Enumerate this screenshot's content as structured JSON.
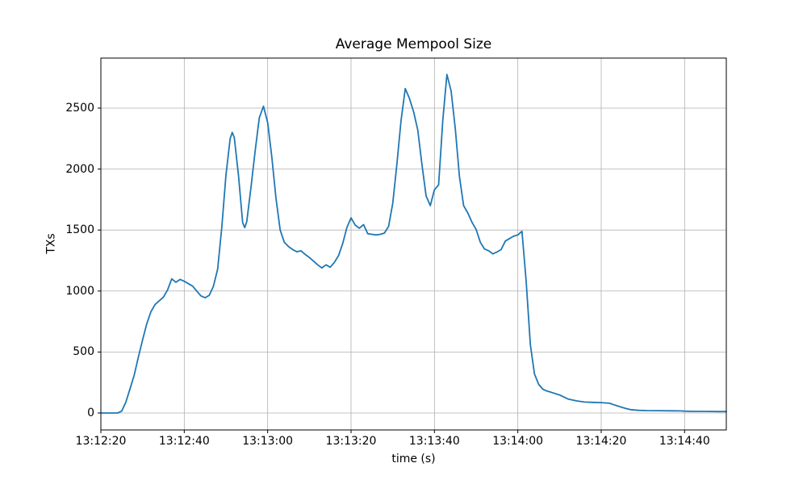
{
  "figure": {
    "background": "#ffffff"
  },
  "chart_data": {
    "type": "line",
    "title": "Average Mempool Size",
    "xlabel": "time (s)",
    "ylabel": "TXs",
    "grid": true,
    "legend_position": "none",
    "line_color": "#1f77b4",
    "grid_color": "#b0b0b0",
    "spine_color": "#000000",
    "x_tick_labels": [
      "13:12:20",
      "13:12:40",
      "13:13:00",
      "13:13:20",
      "13:13:40",
      "13:14:00",
      "13:14:20",
      "13:14:40"
    ],
    "x_tick_seconds": [
      0,
      20,
      40,
      60,
      80,
      100,
      120,
      140
    ],
    "y_ticks": [
      0,
      500,
      1000,
      1500,
      2000,
      2500
    ],
    "xlim_seconds": [
      0,
      150
    ],
    "ylim": [
      -139,
      2910
    ],
    "x_start_time": "13:12:20",
    "x_end_time": "13:14:50",
    "series": [
      {
        "points": [
          [
            0,
            0
          ],
          [
            2,
            0
          ],
          [
            4,
            0
          ],
          [
            5,
            15
          ],
          [
            6,
            90
          ],
          [
            7,
            200
          ],
          [
            8,
            310
          ],
          [
            9,
            460
          ],
          [
            10,
            600
          ],
          [
            11,
            730
          ],
          [
            12,
            830
          ],
          [
            13,
            890
          ],
          [
            14,
            920
          ],
          [
            15,
            950
          ],
          [
            16,
            1010
          ],
          [
            17,
            1100
          ],
          [
            18,
            1072
          ],
          [
            19,
            1095
          ],
          [
            20,
            1080
          ],
          [
            21,
            1060
          ],
          [
            22,
            1040
          ],
          [
            23,
            1000
          ],
          [
            24,
            960
          ],
          [
            25,
            945
          ],
          [
            26,
            965
          ],
          [
            27,
            1040
          ],
          [
            28,
            1180
          ],
          [
            29,
            1520
          ],
          [
            30,
            1950
          ],
          [
            31,
            2250
          ],
          [
            31.5,
            2300
          ],
          [
            32,
            2260
          ],
          [
            33,
            1950
          ],
          [
            34,
            1560
          ],
          [
            34.5,
            1520
          ],
          [
            35,
            1570
          ],
          [
            36,
            1850
          ],
          [
            37,
            2150
          ],
          [
            38,
            2420
          ],
          [
            39,
            2515
          ],
          [
            40,
            2380
          ],
          [
            41,
            2100
          ],
          [
            42,
            1760
          ],
          [
            43,
            1500
          ],
          [
            44,
            1400
          ],
          [
            45,
            1365
          ],
          [
            46,
            1340
          ],
          [
            47,
            1322
          ],
          [
            48,
            1330
          ],
          [
            49,
            1300
          ],
          [
            50,
            1275
          ],
          [
            51,
            1245
          ],
          [
            52,
            1215
          ],
          [
            53,
            1190
          ],
          [
            54,
            1215
          ],
          [
            55,
            1195
          ],
          [
            56,
            1235
          ],
          [
            57,
            1290
          ],
          [
            58,
            1390
          ],
          [
            59,
            1520
          ],
          [
            60,
            1600
          ],
          [
            61,
            1540
          ],
          [
            62,
            1515
          ],
          [
            63,
            1545
          ],
          [
            64,
            1470
          ],
          [
            65,
            1465
          ],
          [
            66,
            1460
          ],
          [
            67,
            1465
          ],
          [
            68,
            1475
          ],
          [
            69,
            1530
          ],
          [
            70,
            1720
          ],
          [
            71,
            2040
          ],
          [
            72,
            2400
          ],
          [
            73,
            2660
          ],
          [
            74,
            2580
          ],
          [
            75,
            2470
          ],
          [
            76,
            2320
          ],
          [
            77,
            2040
          ],
          [
            78,
            1780
          ],
          [
            79,
            1700
          ],
          [
            80,
            1830
          ],
          [
            81,
            1870
          ],
          [
            82,
            2400
          ],
          [
            83,
            2776
          ],
          [
            84,
            2640
          ],
          [
            85,
            2330
          ],
          [
            86,
            1940
          ],
          [
            87,
            1700
          ],
          [
            88,
            1640
          ],
          [
            89,
            1565
          ],
          [
            90,
            1505
          ],
          [
            91,
            1400
          ],
          [
            92,
            1345
          ],
          [
            93,
            1330
          ],
          [
            94,
            1305
          ],
          [
            95,
            1320
          ],
          [
            96,
            1340
          ],
          [
            97,
            1410
          ],
          [
            98,
            1430
          ],
          [
            99,
            1450
          ],
          [
            100,
            1460
          ],
          [
            101,
            1490
          ],
          [
            102,
            1080
          ],
          [
            103,
            560
          ],
          [
            104,
            320
          ],
          [
            105,
            235
          ],
          [
            106,
            195
          ],
          [
            107,
            180
          ],
          [
            108,
            170
          ],
          [
            110,
            148
          ],
          [
            112,
            115
          ],
          [
            114,
            100
          ],
          [
            116,
            90
          ],
          [
            118,
            87
          ],
          [
            120,
            85
          ],
          [
            122,
            80
          ],
          [
            123,
            68
          ],
          [
            125,
            46
          ],
          [
            126,
            36
          ],
          [
            127,
            28
          ],
          [
            129,
            22
          ],
          [
            131,
            20
          ],
          [
            134,
            19
          ],
          [
            137,
            18
          ],
          [
            139,
            17
          ],
          [
            140,
            15
          ],
          [
            142,
            13
          ],
          [
            145,
            13
          ],
          [
            148,
            12
          ],
          [
            150,
            12
          ]
        ]
      }
    ]
  }
}
